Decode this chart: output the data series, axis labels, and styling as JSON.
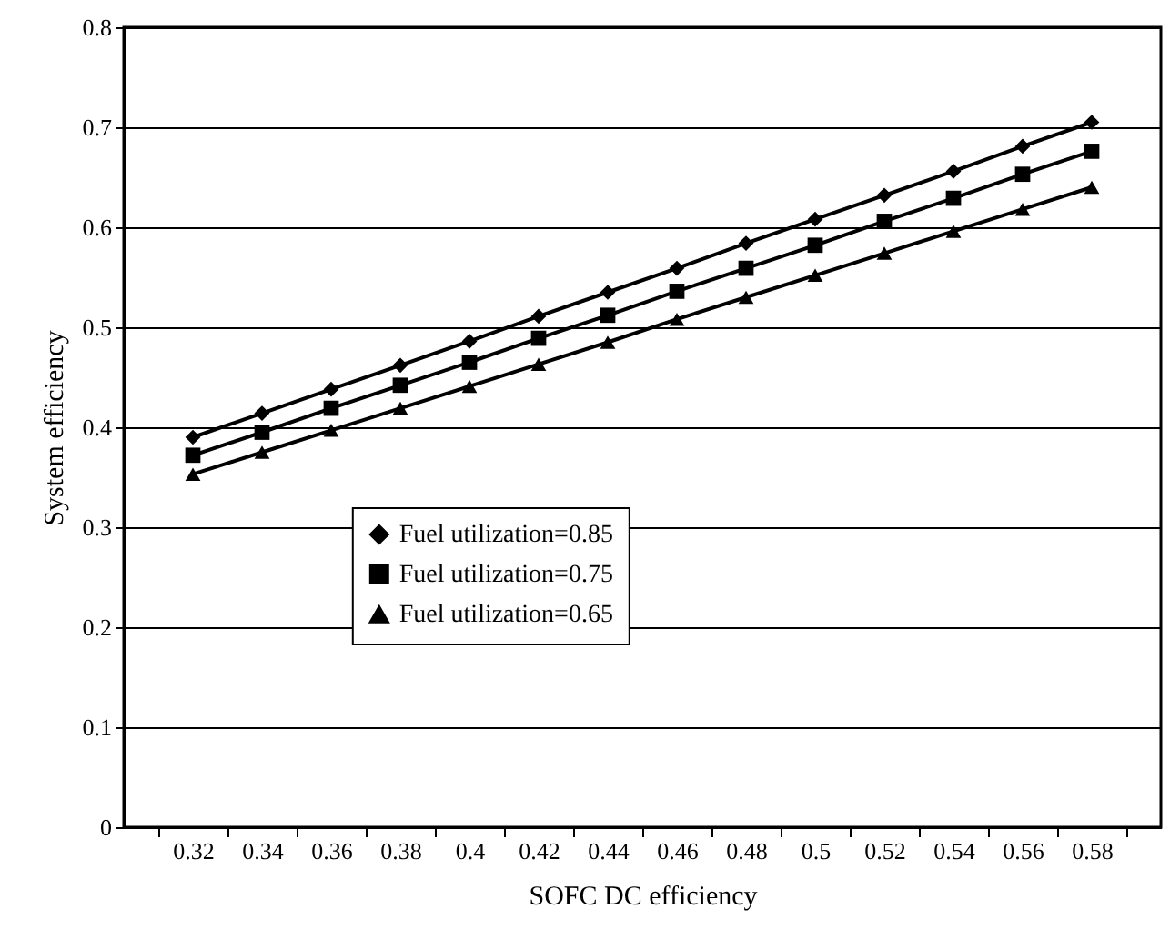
{
  "chart_data": {
    "type": "line",
    "xlabel": "SOFC DC efficiency",
    "ylabel": "System efficiency",
    "categories": [
      "0.32",
      "0.34",
      "0.36",
      "0.38",
      "0.4",
      "0.42",
      "0.44",
      "0.46",
      "0.48",
      "0.5",
      "0.52",
      "0.54",
      "0.56",
      "0.58"
    ],
    "series": [
      {
        "name": "Fuel utilization=0.85",
        "color": "#000000",
        "marker": "diamond",
        "values": [
          0.39,
          0.414,
          0.438,
          0.462,
          0.486,
          0.511,
          0.535,
          0.559,
          0.584,
          0.608,
          0.632,
          0.656,
          0.681,
          0.705
        ]
      },
      {
        "name": "Fuel utilization=0.75",
        "color": "#000000",
        "marker": "square",
        "values": [
          0.372,
          0.395,
          0.419,
          0.442,
          0.465,
          0.489,
          0.512,
          0.536,
          0.559,
          0.582,
          0.606,
          0.629,
          0.653,
          0.676
        ]
      },
      {
        "name": "Fuel utilization=0.65",
        "color": "#000000",
        "marker": "triangle",
        "values": [
          0.353,
          0.375,
          0.397,
          0.419,
          0.441,
          0.463,
          0.485,
          0.508,
          0.53,
          0.552,
          0.574,
          0.596,
          0.618,
          0.64
        ]
      }
    ],
    "ylim": [
      0,
      0.8
    ],
    "yticks": [
      0,
      0.1,
      0.2,
      0.3,
      0.4,
      0.5,
      0.6,
      0.7,
      0.8
    ],
    "grid": "y",
    "legend": "center",
    "line_style": "solid"
  }
}
